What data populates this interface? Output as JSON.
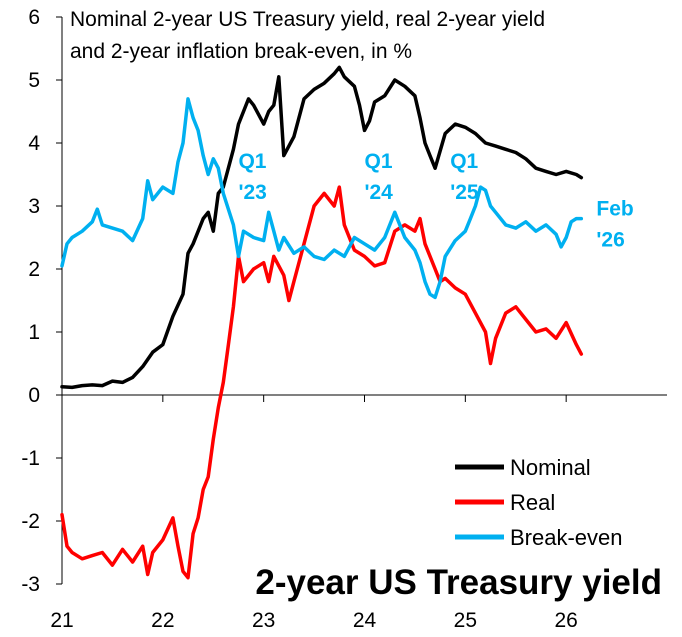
{
  "chart_data": {
    "type": "line",
    "title_line1": "Nominal 2-year US Treasury yield, real 2-year yield",
    "title_line2": "and 2-year inflation break-even, in %",
    "big_title": "2-year US Treasury yield",
    "xlabel": "",
    "ylabel": "",
    "xlim": [
      21.0,
      27.0
    ],
    "ylim": [
      -3,
      6
    ],
    "x_ticks": [
      21,
      22,
      23,
      24,
      25,
      26
    ],
    "x_tick_labels": [
      "21",
      "22",
      "23",
      "24",
      "25",
      "26"
    ],
    "y_ticks": [
      -3,
      -2,
      -1,
      0,
      1,
      2,
      3,
      4,
      5,
      6
    ],
    "y_tick_labels": [
      "-3",
      "-2",
      "-1",
      "0",
      "1",
      "2",
      "3",
      "4",
      "5",
      "6"
    ],
    "grid": false,
    "legend_position": "bottom-right",
    "annotations": [
      {
        "line1": "Q1",
        "line2": "'23",
        "x": 22.75,
        "y": 3.6
      },
      {
        "line1": "Q1",
        "line2": "'24",
        "x": 24.0,
        "y": 3.6
      },
      {
        "line1": "Q1",
        "line2": "'25",
        "x": 24.85,
        "y": 3.6
      },
      {
        "line1": "Feb",
        "line2": "'26",
        "x": 26.3,
        "y": 2.85
      }
    ],
    "series": [
      {
        "name": "Nominal",
        "color": "#000000",
        "points": [
          [
            21.0,
            0.13
          ],
          [
            21.1,
            0.12
          ],
          [
            21.2,
            0.15
          ],
          [
            21.3,
            0.16
          ],
          [
            21.4,
            0.15
          ],
          [
            21.5,
            0.22
          ],
          [
            21.6,
            0.2
          ],
          [
            21.7,
            0.28
          ],
          [
            21.8,
            0.45
          ],
          [
            21.9,
            0.68
          ],
          [
            22.0,
            0.8
          ],
          [
            22.1,
            1.25
          ],
          [
            22.2,
            1.6
          ],
          [
            22.25,
            2.25
          ],
          [
            22.3,
            2.4
          ],
          [
            22.4,
            2.8
          ],
          [
            22.45,
            2.9
          ],
          [
            22.5,
            2.6
          ],
          [
            22.55,
            3.2
          ],
          [
            22.6,
            3.3
          ],
          [
            22.7,
            3.9
          ],
          [
            22.75,
            4.3
          ],
          [
            22.8,
            4.5
          ],
          [
            22.85,
            4.7
          ],
          [
            22.9,
            4.6
          ],
          [
            23.0,
            4.3
          ],
          [
            23.05,
            4.5
          ],
          [
            23.1,
            4.6
          ],
          [
            23.15,
            5.05
          ],
          [
            23.2,
            3.8
          ],
          [
            23.25,
            3.95
          ],
          [
            23.3,
            4.1
          ],
          [
            23.4,
            4.7
          ],
          [
            23.5,
            4.85
          ],
          [
            23.6,
            4.95
          ],
          [
            23.7,
            5.1
          ],
          [
            23.75,
            5.2
          ],
          [
            23.8,
            5.05
          ],
          [
            23.9,
            4.9
          ],
          [
            23.95,
            4.6
          ],
          [
            24.0,
            4.2
          ],
          [
            24.05,
            4.35
          ],
          [
            24.1,
            4.65
          ],
          [
            24.2,
            4.75
          ],
          [
            24.3,
            5.0
          ],
          [
            24.4,
            4.9
          ],
          [
            24.5,
            4.75
          ],
          [
            24.55,
            4.4
          ],
          [
            24.6,
            4.0
          ],
          [
            24.65,
            3.8
          ],
          [
            24.7,
            3.6
          ],
          [
            24.8,
            4.15
          ],
          [
            24.9,
            4.3
          ],
          [
            25.0,
            4.25
          ],
          [
            25.1,
            4.15
          ],
          [
            25.2,
            4.0
          ],
          [
            25.3,
            3.95
          ],
          [
            25.4,
            3.9
          ],
          [
            25.5,
            3.85
          ],
          [
            25.6,
            3.75
          ],
          [
            25.7,
            3.6
          ],
          [
            25.8,
            3.55
          ],
          [
            25.9,
            3.5
          ],
          [
            26.0,
            3.55
          ],
          [
            26.1,
            3.5
          ],
          [
            26.15,
            3.45
          ]
        ]
      },
      {
        "name": "Real",
        "color": "#ff0000",
        "points": [
          [
            21.0,
            -1.9
          ],
          [
            21.05,
            -2.4
          ],
          [
            21.1,
            -2.5
          ],
          [
            21.2,
            -2.6
          ],
          [
            21.3,
            -2.55
          ],
          [
            21.4,
            -2.5
          ],
          [
            21.5,
            -2.7
          ],
          [
            21.6,
            -2.45
          ],
          [
            21.7,
            -2.65
          ],
          [
            21.8,
            -2.4
          ],
          [
            21.85,
            -2.85
          ],
          [
            21.9,
            -2.5
          ],
          [
            22.0,
            -2.3
          ],
          [
            22.1,
            -1.95
          ],
          [
            22.15,
            -2.4
          ],
          [
            22.2,
            -2.8
          ],
          [
            22.25,
            -2.9
          ],
          [
            22.3,
            -2.2
          ],
          [
            22.35,
            -1.95
          ],
          [
            22.4,
            -1.5
          ],
          [
            22.45,
            -1.3
          ],
          [
            22.5,
            -0.7
          ],
          [
            22.55,
            -0.2
          ],
          [
            22.6,
            0.2
          ],
          [
            22.65,
            0.8
          ],
          [
            22.7,
            1.4
          ],
          [
            22.75,
            2.2
          ],
          [
            22.8,
            1.8
          ],
          [
            22.9,
            2.0
          ],
          [
            23.0,
            2.1
          ],
          [
            23.05,
            1.8
          ],
          [
            23.1,
            2.2
          ],
          [
            23.2,
            1.9
          ],
          [
            23.25,
            1.5
          ],
          [
            23.3,
            1.8
          ],
          [
            23.4,
            2.4
          ],
          [
            23.5,
            3.0
          ],
          [
            23.6,
            3.2
          ],
          [
            23.7,
            3.0
          ],
          [
            23.75,
            3.3
          ],
          [
            23.8,
            2.7
          ],
          [
            23.9,
            2.3
          ],
          [
            24.0,
            2.2
          ],
          [
            24.1,
            2.05
          ],
          [
            24.2,
            2.1
          ],
          [
            24.3,
            2.6
          ],
          [
            24.4,
            2.7
          ],
          [
            24.5,
            2.6
          ],
          [
            24.55,
            2.8
          ],
          [
            24.6,
            2.4
          ],
          [
            24.7,
            2.0
          ],
          [
            24.75,
            1.8
          ],
          [
            24.8,
            1.85
          ],
          [
            24.9,
            1.7
          ],
          [
            25.0,
            1.6
          ],
          [
            25.1,
            1.3
          ],
          [
            25.2,
            1.0
          ],
          [
            25.25,
            0.5
          ],
          [
            25.3,
            0.9
          ],
          [
            25.4,
            1.3
          ],
          [
            25.5,
            1.4
          ],
          [
            25.6,
            1.2
          ],
          [
            25.7,
            1.0
          ],
          [
            25.8,
            1.05
          ],
          [
            25.9,
            0.9
          ],
          [
            26.0,
            1.15
          ],
          [
            26.1,
            0.8
          ],
          [
            26.15,
            0.65
          ]
        ]
      },
      {
        "name": "Break-even",
        "color": "#00b0f0",
        "points": [
          [
            21.0,
            2.05
          ],
          [
            21.05,
            2.4
          ],
          [
            21.1,
            2.5
          ],
          [
            21.2,
            2.6
          ],
          [
            21.3,
            2.75
          ],
          [
            21.35,
            2.95
          ],
          [
            21.4,
            2.7
          ],
          [
            21.5,
            2.65
          ],
          [
            21.6,
            2.6
          ],
          [
            21.7,
            2.45
          ],
          [
            21.8,
            2.8
          ],
          [
            21.85,
            3.4
          ],
          [
            21.9,
            3.1
          ],
          [
            22.0,
            3.3
          ],
          [
            22.1,
            3.2
          ],
          [
            22.15,
            3.7
          ],
          [
            22.2,
            4.0
          ],
          [
            22.25,
            4.7
          ],
          [
            22.3,
            4.4
          ],
          [
            22.35,
            4.2
          ],
          [
            22.4,
            3.8
          ],
          [
            22.45,
            3.5
          ],
          [
            22.5,
            3.75
          ],
          [
            22.55,
            3.6
          ],
          [
            22.6,
            3.2
          ],
          [
            22.7,
            2.7
          ],
          [
            22.75,
            2.2
          ],
          [
            22.8,
            2.6
          ],
          [
            22.9,
            2.5
          ],
          [
            23.0,
            2.45
          ],
          [
            23.05,
            2.9
          ],
          [
            23.1,
            2.6
          ],
          [
            23.15,
            2.3
          ],
          [
            23.2,
            2.5
          ],
          [
            23.3,
            2.25
          ],
          [
            23.4,
            2.35
          ],
          [
            23.5,
            2.2
          ],
          [
            23.6,
            2.15
          ],
          [
            23.7,
            2.3
          ],
          [
            23.8,
            2.2
          ],
          [
            23.9,
            2.5
          ],
          [
            24.0,
            2.4
          ],
          [
            24.1,
            2.3
          ],
          [
            24.2,
            2.5
          ],
          [
            24.3,
            2.9
          ],
          [
            24.4,
            2.5
          ],
          [
            24.5,
            2.3
          ],
          [
            24.55,
            2.1
          ],
          [
            24.6,
            1.8
          ],
          [
            24.65,
            1.6
          ],
          [
            24.7,
            1.55
          ],
          [
            24.75,
            1.8
          ],
          [
            24.8,
            2.2
          ],
          [
            24.9,
            2.45
          ],
          [
            25.0,
            2.6
          ],
          [
            25.05,
            2.8
          ],
          [
            25.1,
            3.0
          ],
          [
            25.15,
            3.3
          ],
          [
            25.2,
            3.25
          ],
          [
            25.25,
            3.0
          ],
          [
            25.3,
            2.9
          ],
          [
            25.4,
            2.7
          ],
          [
            25.5,
            2.65
          ],
          [
            25.6,
            2.75
          ],
          [
            25.7,
            2.6
          ],
          [
            25.8,
            2.7
          ],
          [
            25.9,
            2.55
          ],
          [
            25.95,
            2.35
          ],
          [
            26.0,
            2.5
          ],
          [
            26.05,
            2.75
          ],
          [
            26.1,
            2.8
          ],
          [
            26.15,
            2.8
          ]
        ]
      }
    ]
  }
}
